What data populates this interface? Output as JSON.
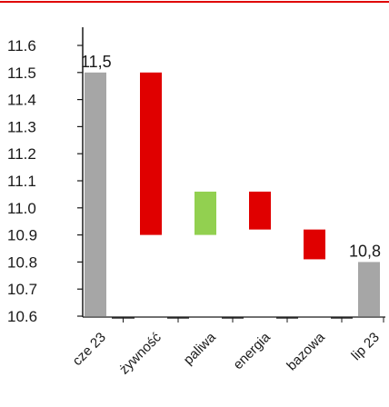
{
  "chart_data": {
    "type": "bar",
    "subtype": "waterfall",
    "categories": [
      "cze 23",
      "żywność",
      "paliwa",
      "energia",
      "bazowa",
      "lip 23"
    ],
    "bars": [
      {
        "category": "cze 23",
        "kind": "total",
        "from": 10.6,
        "to": 11.5,
        "color": "#a6a6a6"
      },
      {
        "category": "żywność",
        "kind": "decrease",
        "from": 11.5,
        "to": 10.9,
        "color": "#e00000"
      },
      {
        "category": "paliwa",
        "kind": "increase",
        "from": 10.9,
        "to": 11.06,
        "color": "#92d050"
      },
      {
        "category": "energia",
        "kind": "decrease",
        "from": 11.06,
        "to": 10.92,
        "color": "#e00000"
      },
      {
        "category": "bazowa",
        "kind": "decrease",
        "from": 10.92,
        "to": 10.81,
        "color": "#e00000"
      },
      {
        "category": "lip 23",
        "kind": "total",
        "from": 10.6,
        "to": 10.8,
        "color": "#a6a6a6"
      }
    ],
    "data_labels": [
      {
        "category": "cze 23",
        "text": "11,5"
      },
      {
        "category": "lip 23",
        "text": "10,8"
      }
    ],
    "y_ticks": [
      "10.6",
      "10.7",
      "10.8",
      "10.9",
      "11.0",
      "11.1",
      "11.2",
      "11.3",
      "11.4",
      "11.5",
      "11.6"
    ],
    "ylim": [
      10.6,
      11.6
    ],
    "title": "",
    "xlabel": "",
    "ylabel": "",
    "grid": false,
    "legend": "none",
    "top_rule_color": "#e00000",
    "axis_color": "#1a1a1a",
    "baseline_color": "#333333"
  }
}
